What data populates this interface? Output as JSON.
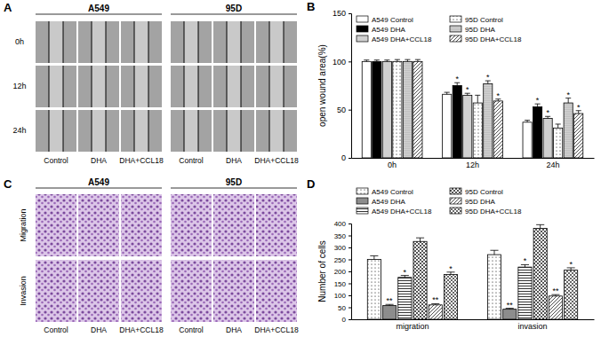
{
  "panels": [
    {
      "panel_label": "A",
      "groups": [
        "A549",
        "95D"
      ],
      "rows": [
        "0h",
        "12h",
        "24h"
      ],
      "columns": [
        "Control",
        "DHA",
        "DHA+CCL18"
      ]
    },
    {
      "panel_label": "C",
      "groups": [
        "A549",
        "95D"
      ],
      "rows": [
        "Migration",
        "Invasion"
      ],
      "columns": [
        "Control",
        "DHA",
        "DHA+CCL18"
      ]
    }
  ],
  "chart_data": [
    {
      "type": "bar",
      "panel_label": "B",
      "y_label": "open wound area(%)",
      "categories": [
        "0h",
        "12h",
        "24h"
      ],
      "ylim": [
        0,
        150
      ],
      "yticks": [
        0,
        50,
        100,
        150
      ],
      "legend": "upper left",
      "series": [
        {
          "name": "A549 Control",
          "color": "#ffffff",
          "values": [
            100,
            66,
            37
          ],
          "errors": [
            1.5,
            2,
            2
          ],
          "significance": [
            null,
            null,
            null
          ]
        },
        {
          "name": "A549 DHA",
          "color": "#000000",
          "values": [
            100,
            75,
            53
          ],
          "errors": [
            1.5,
            3,
            3
          ],
          "significance": [
            null,
            "*",
            "*"
          ]
        },
        {
          "name": "A549 DHA+CCL18",
          "color": "#d0d0d0",
          "values": [
            100,
            65,
            41
          ],
          "errors": [
            1.5,
            2,
            2
          ],
          "significance": [
            null,
            "*",
            "*"
          ]
        },
        {
          "name": "95D Control",
          "color": "#ffffff",
          "values": [
            100,
            57,
            31
          ],
          "errors": [
            2,
            8,
            4
          ],
          "significance": [
            null,
            null,
            null
          ]
        },
        {
          "name": "95D DHA",
          "color": "#ffffff",
          "values": [
            100,
            77,
            57
          ],
          "errors": [
            2,
            3,
            5
          ],
          "significance": [
            null,
            "*",
            "*"
          ]
        },
        {
          "name": "95D DHA+CCL18",
          "color": "#ffffff",
          "values": [
            100,
            59,
            46
          ],
          "errors": [
            2,
            2,
            3
          ],
          "significance": [
            null,
            "*",
            "*"
          ]
        }
      ]
    },
    {
      "type": "bar",
      "panel_label": "D",
      "y_label": "Number of cells",
      "categories": [
        "migration",
        "invasion"
      ],
      "ylim": [
        0,
        400
      ],
      "yticks": [
        0,
        50,
        100,
        150,
        200,
        250,
        300,
        350,
        400
      ],
      "legend": "top",
      "series": [
        {
          "name": "A549 Control",
          "color": "#ffffff",
          "values": [
            250,
            270
          ],
          "errors": [
            15,
            18
          ],
          "significance": [
            null,
            null
          ]
        },
        {
          "name": "A549 DHA",
          "color": "#ffffff",
          "values": [
            57,
            42
          ],
          "errors": [
            5,
            4
          ],
          "significance": [
            "**",
            "**"
          ]
        },
        {
          "name": "A549 DHA+CCL18",
          "color": "#ffffff",
          "values": [
            175,
            218
          ],
          "errors": [
            8,
            10
          ],
          "significance": [
            "*",
            "*"
          ]
        },
        {
          "name": "95D Control",
          "color": "#ffffff",
          "values": [
            325,
            380
          ],
          "errors": [
            15,
            15
          ],
          "significance": [
            null,
            null
          ]
        },
        {
          "name": "95D DHA",
          "color": "#ffffff",
          "values": [
            60,
            97
          ],
          "errors": [
            5,
            6
          ],
          "significance": [
            "**",
            "**"
          ]
        },
        {
          "name": "95D DHA+CCL18",
          "color": "#ffffff",
          "values": [
            187,
            205
          ],
          "errors": [
            10,
            10
          ],
          "significance": [
            "*",
            "*"
          ]
        }
      ]
    }
  ]
}
